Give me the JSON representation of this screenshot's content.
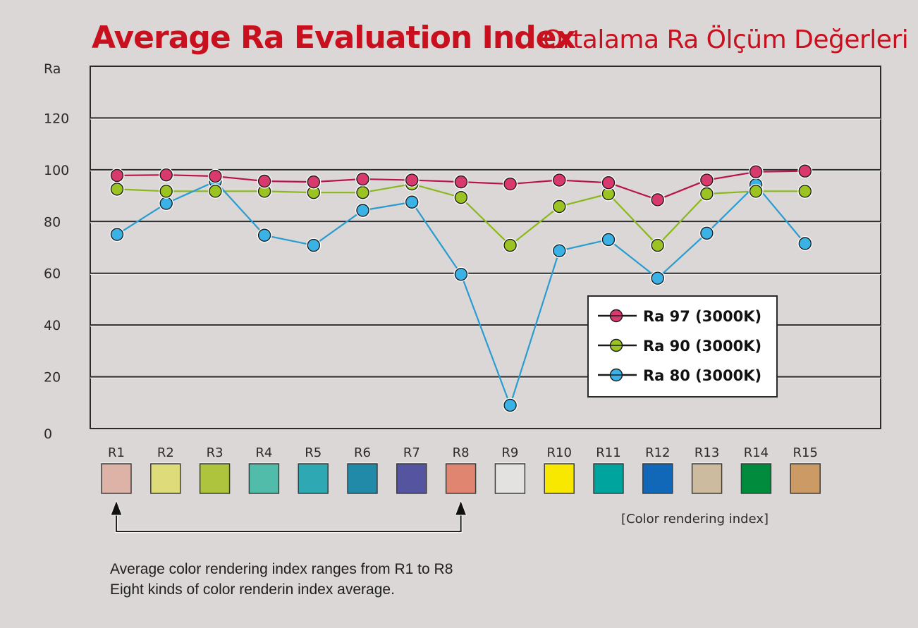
{
  "title": {
    "main": "Average Ra Evaluation Index",
    "sub": "Ortalama Ra Ölçüm Değerleri"
  },
  "chart_data": {
    "type": "line",
    "title": "Average Ra Evaluation Index",
    "subtitle": "Ortalama Ra Ölçüm Değerleri",
    "xlabel": "[Color rendering index]",
    "ylabel": "Ra",
    "ylim": [
      0,
      140
    ],
    "yticks": [
      0,
      20,
      40,
      60,
      80,
      100,
      120
    ],
    "grid": true,
    "legend_position": "lower-right",
    "categories": [
      "R1",
      "R2",
      "R3",
      "R4",
      "R5",
      "R6",
      "R7",
      "R8",
      "R9",
      "R10",
      "R11",
      "R12",
      "R13",
      "R14",
      "R15"
    ],
    "category_colors": [
      "#dcb3a6",
      "#dedb7a",
      "#adc43c",
      "#52bcaa",
      "#2ea8b2",
      "#218aa8",
      "#5454a0",
      "#e08570",
      "#e4e2e0",
      "#f8e800",
      "#00a49e",
      "#1268b8",
      "#cdbba0",
      "#008c3c",
      "#cc9a64"
    ],
    "series": [
      {
        "name": "Ra 97 (3000K)",
        "color": "#d93a6e",
        "line_color": "#b7144e",
        "values": [
          97.8,
          98,
          97.5,
          95.6,
          95.3,
          96.4,
          96,
          95.3,
          94.5,
          96,
          95,
          88.4,
          96,
          99.2,
          99.5
        ]
      },
      {
        "name": "Ra 90 (3000K)",
        "color": "#9bc422",
        "line_color": "#8ab81c",
        "values": [
          92.5,
          91.7,
          91.7,
          91.7,
          91.2,
          91.2,
          94.5,
          89.3,
          70.8,
          85.8,
          90.7,
          70.8,
          90.7,
          91.7,
          91.7
        ]
      },
      {
        "name": "Ra 80 (3000K)",
        "color": "#3ab2e6",
        "line_color": "#2a9cd0",
        "values": [
          75,
          87,
          95.5,
          74.7,
          70.8,
          84.3,
          87.5,
          59.6,
          9,
          68.7,
          73,
          58.1,
          75.5,
          94.2,
          71.5
        ]
      }
    ],
    "bracket": {
      "from": "R1",
      "to": "R8"
    }
  },
  "notes": {
    "line1": "Average color rendering index ranges from R1 to R8",
    "line2": "Eight kinds of color renderin index average."
  },
  "colors": {
    "title": "#c8101e",
    "background": "#dbd7d6",
    "grid": "#2a2a2a"
  }
}
